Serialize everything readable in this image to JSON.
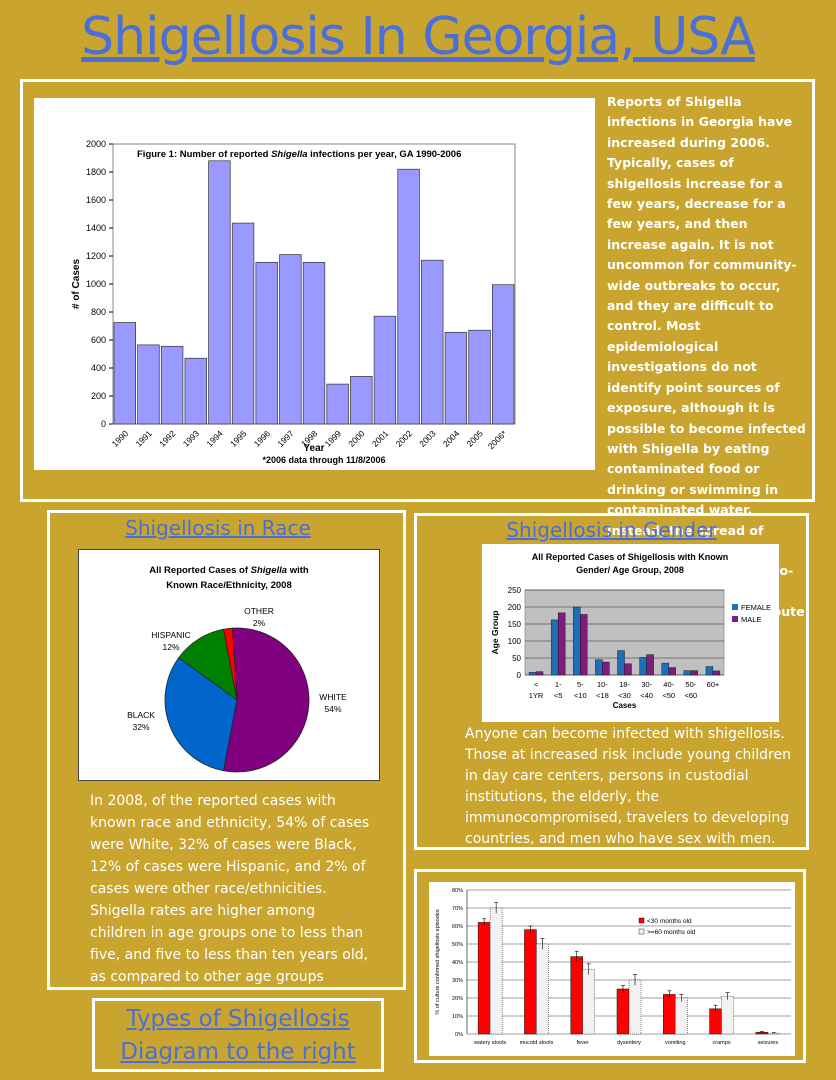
{
  "page_title": "Shigellosis In Georgia, USA",
  "intro_text": "Reports of Shigella infections in Georgia have increased during 2006. Typically, cases of shigellosis increase for a few years, decrease for a few years, and then increase again. It is not uncommon for community-wide outbreaks to occur, and they are difficult to control. Most epidemiological investigations do not identify point sources of exposure, although it is possible to become infected with Shigella by eating contaminated food or drinking or swimming in contaminated water. Instead, the spread of shigellosis tends to be consistent with person-to-person transmission through the fecal-oral route or fomites.",
  "race_section_title": "Shigellosis in Race ",
  "race_text": "In 2008, of the reported cases with known race and ethnicity, 54% of cases were White, 32% of cases were Black, 12% of cases were Hispanic, and 2% of cases were other race/ethnicities. Shigella rates are higher among children in age groups one to less than five, and five to less than ten years old, as compared to other age groups",
  "gender_section_title": "Shigellosis in Gender",
  "gender_text": "Anyone can become infected with shigellosis. Those at increased risk include young children in day care centers, persons in custodial institutions, the elderly, the immunocompromised, travelers to developing countries, and men who have sex with men.",
  "types_box": {
    "line1": "Types of Shigellosis",
    "line2": "Diagram to the right"
  },
  "colors": {
    "background": "#c9a52f",
    "title_blue": "#4a6fd8",
    "bar_lavender": "#9999ff",
    "female": "#1f6fb8",
    "male": "#7b1f7b",
    "red": "#ff0000"
  },
  "chart_data": [
    {
      "type": "bar",
      "title_prefix": "Figure 1:  Number of reported ",
      "title_italic": "Shigella",
      "title_suffix": " infections per year, GA 1990-2006",
      "xlabel": "Year",
      "ylabel": "# of Cases",
      "footnote": "*2006 data through 11/8/2006",
      "categories": [
        "1990",
        "1991",
        "1992",
        "1993",
        "1994",
        "1995",
        "1996",
        "1997",
        "1998",
        "1999",
        "2000",
        "2001",
        "2002",
        "2003",
        "2004",
        "2005",
        "2006*"
      ],
      "values": [
        725,
        565,
        555,
        470,
        1880,
        1435,
        1155,
        1210,
        1155,
        285,
        340,
        770,
        1820,
        1170,
        655,
        670,
        995
      ],
      "yticks": [
        "0",
        "200",
        "400",
        "600",
        "800",
        "1000",
        "1200",
        "1400",
        "1600",
        "1800",
        "2000"
      ],
      "ylim": [
        0,
        2000
      ]
    },
    {
      "type": "pie",
      "title_line1_prefix": "All Reported Cases of ",
      "title_line1_italic": "Shigella",
      "title_line1_suffix": " with",
      "title_line2": "Known Race/Ethnicity, 2008",
      "slices": [
        {
          "label": "WHITE",
          "pct_label": "54%",
          "value": 54,
          "color": "#800080"
        },
        {
          "label": "BLACK",
          "pct_label": "32%",
          "value": 32,
          "color": "#0066cc"
        },
        {
          "label": "HISPANIC",
          "pct_label": "12%",
          "value": 12,
          "color": "#008000"
        },
        {
          "label": "OTHER",
          "pct_label": "2%",
          "value": 2,
          "color": "#ff0000"
        }
      ]
    },
    {
      "type": "bar",
      "title_line1": "All Reported Cases of Shigellosis with Known",
      "title_line2": "Gender/ Age Group, 2008",
      "xlabel": "Cases",
      "ylabel": "Age Group",
      "yticks": [
        "0",
        "50",
        "100",
        "150",
        "200",
        "250"
      ],
      "ylim": [
        0,
        250
      ],
      "categories": [
        [
          "<",
          "1YR"
        ],
        [
          "1-",
          "<5"
        ],
        [
          "5-",
          "<10"
        ],
        [
          "10-",
          "<18"
        ],
        [
          "18-",
          "<30"
        ],
        [
          "30-",
          "<40"
        ],
        [
          "40-",
          "<50"
        ],
        [
          "50-",
          "<60"
        ],
        [
          "60+",
          ""
        ]
      ],
      "series": [
        {
          "name": "FEMALE",
          "values": [
            8,
            162,
            200,
            45,
            72,
            52,
            35,
            13,
            25
          ]
        },
        {
          "name": "MALE",
          "values": [
            10,
            183,
            178,
            38,
            33,
            60,
            22,
            13,
            12
          ]
        }
      ]
    },
    {
      "type": "bar",
      "ylabel": "% of culture confirmed shigellosis episodes",
      "yticks": [
        "0%",
        "10%",
        "20%",
        "30%",
        "40%",
        "50%",
        "60%",
        "70%",
        "80%"
      ],
      "ylim": [
        0,
        80
      ],
      "categories": [
        "watery stools",
        "mucoid stools",
        "fever",
        "dysentery",
        "vomiting",
        "cramps",
        "seizures"
      ],
      "series": [
        {
          "name": "<30 months old",
          "values": [
            62,
            58,
            43,
            25,
            22,
            14,
            1
          ]
        },
        {
          "name": ">=60 months old",
          "values": [
            70,
            50,
            36,
            30,
            20,
            21,
            0.5
          ]
        }
      ],
      "errors": [
        [
          2,
          2,
          3,
          2,
          2,
          2,
          0.5
        ],
        [
          3,
          3,
          3,
          3,
          2,
          2,
          0.3
        ]
      ]
    }
  ]
}
